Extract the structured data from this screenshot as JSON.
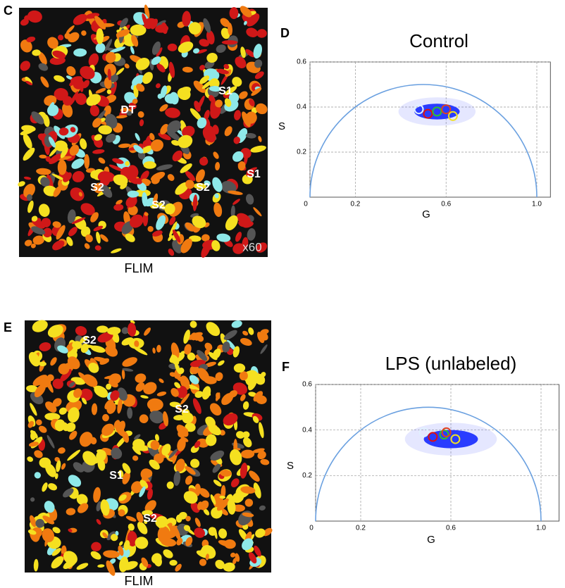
{
  "images": [
    {
      "letter": "C",
      "labels": [
        "DT",
        "S1",
        "S1",
        "S2",
        "S2",
        "S2"
      ],
      "magnification": "x60",
      "caption": "FLIM"
    },
    {
      "letter": "E",
      "labels": [
        "S2",
        "S2",
        "S1",
        "S2"
      ],
      "caption": "FLIM"
    }
  ],
  "chart_data": [
    {
      "type": "scatter",
      "panel": "D",
      "title": "Control",
      "x_label": "G",
      "y_label": "S",
      "xlim": [
        0,
        1.06
      ],
      "ylim": [
        0,
        0.6
      ],
      "xticks": [
        0,
        0.2,
        0.6,
        {
          "value": 1,
          "label": "1.0"
        }
      ],
      "yticks": [
        0.2,
        0.4,
        0.6
      ],
      "grid": true,
      "semicircle": [
        0,
        1
      ],
      "cloud": {
        "g": 0.56,
        "s": 0.38,
        "rg": 0.1,
        "rs": 0.035,
        "color": "#2a3cff"
      },
      "points": {
        "x": [
          0.48,
          0.52,
          0.56,
          0.6,
          0.63
        ],
        "y": [
          0.39,
          0.37,
          0.38,
          0.39,
          0.36
        ],
        "colors": [
          "#e0f0ff",
          "#e01010",
          "#30c030",
          "#e04020",
          "#f0e020"
        ]
      }
    },
    {
      "type": "scatter",
      "panel": "F",
      "title": "LPS (unlabeled)",
      "x_label": "G",
      "y_label": "S",
      "xlim": [
        0,
        1.08
      ],
      "ylim": [
        0,
        0.6
      ],
      "xticks": [
        0,
        0.2,
        0.6,
        {
          "value": 1,
          "label": "1.0"
        }
      ],
      "yticks": [
        0.2,
        0.4,
        0.6
      ],
      "grid": true,
      "semicircle": [
        0,
        1
      ],
      "cloud": {
        "g": 0.6,
        "s": 0.36,
        "rg": 0.12,
        "rs": 0.04,
        "color": "#2a3cff"
      },
      "points": {
        "x": [
          0.48,
          0.52,
          0.57,
          0.58,
          0.62
        ],
        "y": [
          0.39,
          0.37,
          0.38,
          0.39,
          0.36
        ],
        "colors": [
          "#e0f0ff",
          "#e01010",
          "#30c030",
          "#e04020",
          "#f0e020"
        ]
      }
    }
  ]
}
